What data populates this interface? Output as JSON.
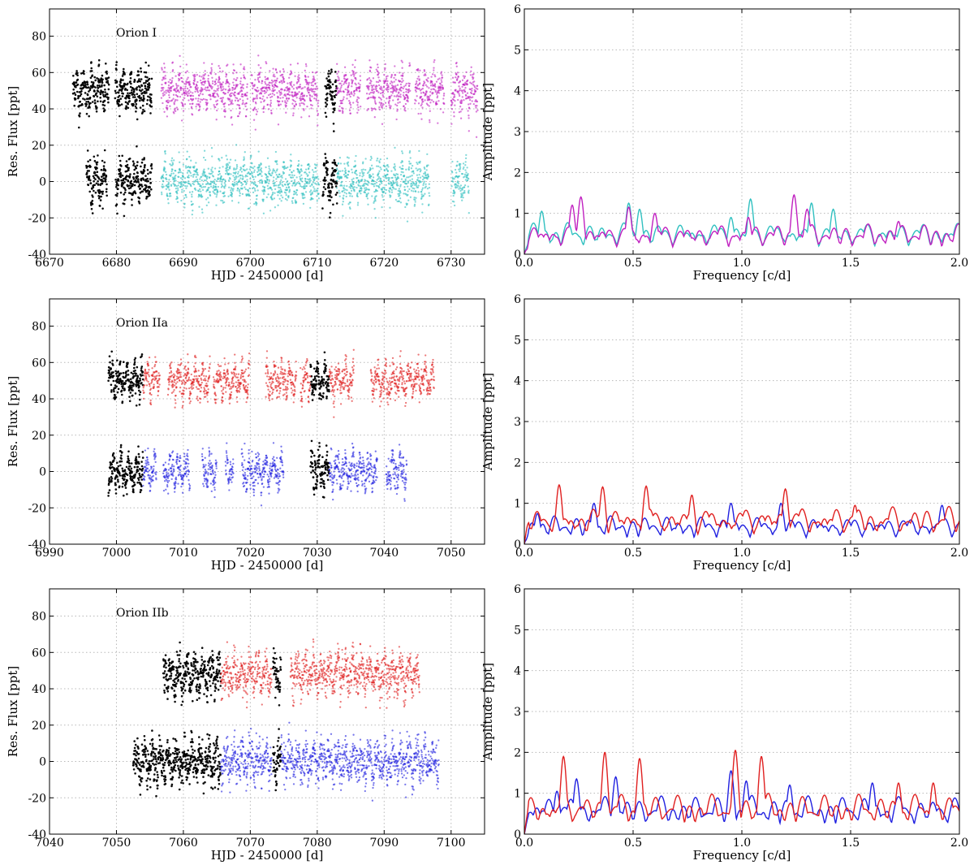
{
  "chart_data": [
    {
      "type": "scatter",
      "panel": "light curve",
      "annotation": "Orion I",
      "xlabel": "HJD - 2450000 [d]",
      "ylabel": "Res. Flux [ppt]",
      "xlim": [
        6670,
        6735
      ],
      "ylim": [
        -40,
        95
      ],
      "xticks": [
        6670,
        6680,
        6690,
        6700,
        6710,
        6720,
        6730
      ],
      "yticks": [
        -40,
        -20,
        0,
        20,
        40,
        60,
        80
      ],
      "grid": true,
      "series": [
        {
          "color": "#000000",
          "offset": 50,
          "spread": 6.5,
          "segments": [
            [
              6673.5,
              6678.9
            ],
            [
              6679.8,
              6685.3
            ],
            [
              6711.2,
              6712.9
            ]
          ]
        },
        {
          "color": "#c020c0",
          "offset": 50,
          "spread": 6.5,
          "segments": [
            [
              6686.7,
              6699.6
            ],
            [
              6700.2,
              6710.2
            ],
            [
              6712.9,
              6716.5
            ],
            [
              6717.4,
              6723.9
            ],
            [
              6724.6,
              6729.0
            ],
            [
              6730.0,
              6734.0
            ]
          ]
        },
        {
          "color": "#000000",
          "offset": 0,
          "spread": 6.5,
          "segments": [
            [
              6675.5,
              6678.6
            ],
            [
              6679.9,
              6685.3
            ],
            [
              6710.8,
              6713.0
            ]
          ]
        },
        {
          "color": "#30c0c0",
          "offset": 0,
          "spread": 6.5,
          "segments": [
            [
              6686.7,
              6710.3
            ],
            [
              6712.9,
              6726.8
            ],
            [
              6730.1,
              6732.7
            ]
          ]
        }
      ]
    },
    {
      "type": "line",
      "panel": "amplitude spectrum",
      "xlabel": "Frequency [c/d]",
      "ylabel": "Amplitude [ppt]",
      "xlim": [
        0.0,
        2.0
      ],
      "ylim": [
        0,
        6
      ],
      "xticks": [
        0.0,
        0.5,
        1.0,
        1.5,
        2.0
      ],
      "yticks": [
        0,
        1,
        2,
        3,
        4,
        5,
        6
      ],
      "grid": true,
      "series": [
        {
          "color": "#30c0c0",
          "peaks": [
            [
              0.08,
              1.05
            ],
            [
              0.48,
              1.25
            ],
            [
              0.53,
              1.1
            ],
            [
              0.95,
              0.9
            ],
            [
              1.04,
              1.35
            ],
            [
              1.32,
              1.25
            ],
            [
              1.42,
              1.1
            ]
          ],
          "base": 0.55
        },
        {
          "color": "#c020c0",
          "peaks": [
            [
              0.26,
              1.4
            ],
            [
              0.22,
              1.2
            ],
            [
              0.48,
              1.15
            ],
            [
              0.6,
              1.0
            ],
            [
              1.03,
              0.9
            ],
            [
              1.24,
              1.45
            ],
            [
              1.3,
              1.1
            ],
            [
              1.72,
              0.8
            ]
          ],
          "base": 0.5
        }
      ]
    },
    {
      "type": "scatter",
      "panel": "light curve",
      "annotation": "Orion IIa",
      "xlabel": "HJD - 2450000 [d]",
      "ylabel": "Res. Flux [ppt]",
      "xlim": [
        6990,
        7055
      ],
      "ylim": [
        -40,
        95
      ],
      "xticks": [
        6990,
        7000,
        7010,
        7020,
        7030,
        7040,
        7050
      ],
      "yticks": [
        -40,
        -20,
        0,
        20,
        40,
        60,
        80
      ],
      "grid": true,
      "series": [
        {
          "color": "#000000",
          "offset": 50,
          "spread": 5,
          "segments": [
            [
              6998.8,
              7004.0
            ],
            [
              7029.0,
              7031.8
            ]
          ]
        },
        {
          "color": "#e02020",
          "offset": 50,
          "spread": 5,
          "segments": [
            [
              7004.0,
              7006.5
            ],
            [
              7007.7,
              7014.0
            ],
            [
              7014.5,
              7019.9
            ],
            [
              7022.3,
              7026.9
            ],
            [
              7027.5,
              7029.0
            ],
            [
              7031.8,
              7035.5
            ],
            [
              7038.0,
              7047.5
            ]
          ]
        },
        {
          "color": "#000000",
          "offset": 0,
          "spread": 5,
          "segments": [
            [
              6998.8,
              7004.0
            ],
            [
              7029.0,
              7031.8
            ]
          ]
        },
        {
          "color": "#2020e0",
          "offset": 0,
          "spread": 5,
          "segments": [
            [
              7004.0,
              7006.0
            ],
            [
              7007.0,
              7011.0
            ],
            [
              7012.8,
              7015.0
            ],
            [
              7016.3,
              7017.5
            ],
            [
              7018.7,
              7025.0
            ],
            [
              7031.8,
              7039.0
            ],
            [
              7040.3,
              7043.4
            ]
          ]
        }
      ]
    },
    {
      "type": "line",
      "panel": "amplitude spectrum",
      "xlabel": "Frequency [c/d]",
      "ylabel": "Amplitude [ppt]",
      "xlim": [
        0.0,
        2.0
      ],
      "ylim": [
        0,
        6
      ],
      "xticks": [
        0.0,
        0.5,
        1.0,
        1.5,
        2.0
      ],
      "yticks": [
        0,
        1,
        2,
        3,
        4,
        5,
        6
      ],
      "grid": true,
      "series": [
        {
          "color": "#2020e0",
          "peaks": [
            [
              0.06,
              0.75
            ],
            [
              0.32,
              1.0
            ],
            [
              0.95,
              1.0
            ],
            [
              1.18,
              1.0
            ],
            [
              1.92,
              0.95
            ]
          ],
          "base": 0.45
        },
        {
          "color": "#e02020",
          "peaks": [
            [
              0.16,
              1.45
            ],
            [
              0.36,
              1.4
            ],
            [
              0.56,
              1.42
            ],
            [
              0.77,
              1.2
            ],
            [
              1.2,
              1.35
            ],
            [
              1.52,
              0.95
            ]
          ],
          "base": 0.7
        }
      ]
    },
    {
      "type": "scatter",
      "panel": "light curve",
      "annotation": "Orion IIb",
      "xlabel": "HJD - 2450000 [d]",
      "ylabel": "Res. Flux [ppt]",
      "xlim": [
        7040,
        7105
      ],
      "ylim": [
        -40,
        95
      ],
      "xticks": [
        7040,
        7050,
        7060,
        7070,
        7080,
        7090,
        7100
      ],
      "yticks": [
        -40,
        -20,
        0,
        20,
        40,
        60,
        80
      ],
      "grid": true,
      "series": [
        {
          "color": "#000000",
          "offset": 48,
          "spread": 6.5,
          "segments": [
            [
              7057.0,
              7065.6
            ],
            [
              7073.4,
              7074.6
            ]
          ]
        },
        {
          "color": "#e02020",
          "offset": 48,
          "spread": 6.5,
          "segments": [
            [
              7065.6,
              7073.2
            ],
            [
              7076.0,
              7095.3
            ]
          ]
        },
        {
          "color": "#000000",
          "offset": 0,
          "spread": 6.5,
          "segments": [
            [
              7052.5,
              7065.6
            ],
            [
              7073.4,
              7074.6
            ]
          ]
        },
        {
          "color": "#2020e0",
          "offset": 0,
          "spread": 6.5,
          "segments": [
            [
              7065.6,
              7073.2
            ],
            [
              7074.6,
              7098.2
            ]
          ]
        }
      ]
    },
    {
      "type": "line",
      "panel": "amplitude spectrum",
      "xlabel": "Frequency [c/d]",
      "ylabel": "Amplitude [ppt]",
      "xlim": [
        0.0,
        2.0
      ],
      "ylim": [
        0,
        6
      ],
      "xticks": [
        0.0,
        0.5,
        1.0,
        1.5,
        2.0
      ],
      "yticks": [
        0,
        1,
        2,
        3,
        4,
        5,
        6
      ],
      "grid": true,
      "series": [
        {
          "color": "#2020e0",
          "peaks": [
            [
              0.15,
              1.05
            ],
            [
              0.24,
              1.35
            ],
            [
              0.42,
              1.4
            ],
            [
              0.95,
              1.55
            ],
            [
              1.02,
              1.3
            ],
            [
              1.22,
              1.2
            ],
            [
              1.6,
              1.25
            ]
          ],
          "base": 0.7
        },
        {
          "color": "#e02020",
          "peaks": [
            [
              0.18,
              1.9
            ],
            [
              0.37,
              2.0
            ],
            [
              0.53,
              1.85
            ],
            [
              0.97,
              2.05
            ],
            [
              1.09,
              1.9
            ],
            [
              1.72,
              1.25
            ],
            [
              1.88,
              1.25
            ]
          ],
          "base": 0.75
        }
      ]
    }
  ]
}
